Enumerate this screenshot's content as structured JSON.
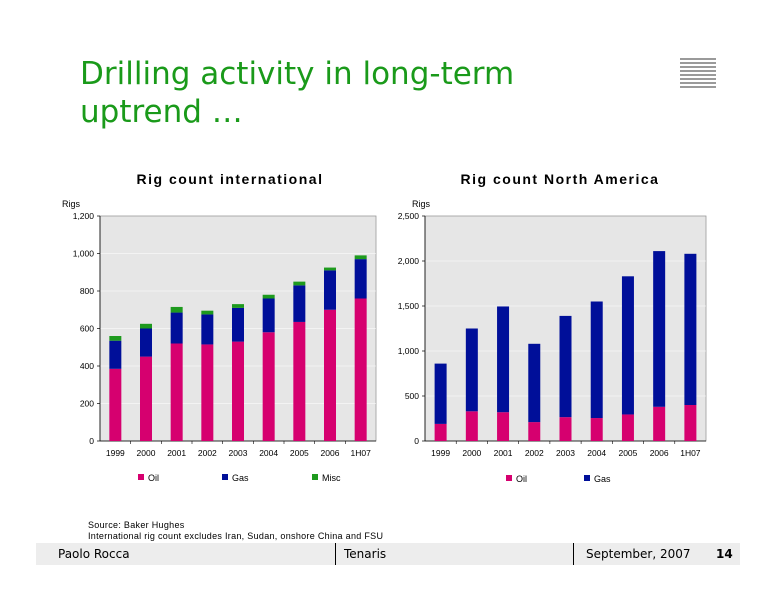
{
  "slide": {
    "title": "Drilling activity in long-term uptrend …",
    "source": "Source:   Baker Hughes",
    "note": "International rig count excludes Iran, Sudan, onshore China and FSU",
    "footer_left": "Paolo Rocca",
    "footer_mid": "Tenaris",
    "footer_date": "September, 2007",
    "page_number": "14"
  },
  "colors": {
    "oil": "#d6006f",
    "gas": "#000f99",
    "misc": "#1e9a1e",
    "plot_bg": "#e6e6e6",
    "title_green": "#1a9a1a"
  },
  "chart_data": [
    {
      "type": "bar",
      "stacked": true,
      "title": "Rig count international",
      "ylabel": "Rigs",
      "ylim": [
        0,
        1200
      ],
      "yticks": [
        0,
        200,
        400,
        600,
        800,
        1000,
        1200
      ],
      "ytick_labels": [
        "0",
        "200",
        "400",
        "600",
        "800",
        "1,000",
        "1,200"
      ],
      "categories": [
        "1999",
        "2000",
        "2001",
        "2002",
        "2003",
        "2004",
        "2005",
        "2006",
        "1H07"
      ],
      "series": [
        {
          "name": "Oil",
          "color": "#d6006f",
          "values": [
            385,
            450,
            520,
            515,
            530,
            580,
            635,
            700,
            760
          ]
        },
        {
          "name": "Gas",
          "color": "#000f99",
          "values": [
            150,
            150,
            165,
            160,
            180,
            180,
            195,
            210,
            210
          ]
        },
        {
          "name": "Misc",
          "color": "#1e9a1e",
          "values": [
            25,
            25,
            30,
            20,
            20,
            20,
            20,
            15,
            20
          ]
        }
      ],
      "legend": "bottom"
    },
    {
      "type": "bar",
      "stacked": true,
      "title": "Rig count North America",
      "ylabel": "Rigs",
      "ylim": [
        0,
        2500
      ],
      "yticks": [
        0,
        500,
        1000,
        1500,
        2000,
        2500
      ],
      "ytick_labels": [
        "0",
        "500",
        "1,000",
        "1,500",
        "2,000",
        "2,500"
      ],
      "categories": [
        "1999",
        "2000",
        "2001",
        "2002",
        "2003",
        "2004",
        "2005",
        "2006",
        "1H07"
      ],
      "series": [
        {
          "name": "Oil",
          "color": "#d6006f",
          "values": [
            190,
            330,
            320,
            210,
            265,
            255,
            295,
            380,
            400
          ]
        },
        {
          "name": "Gas",
          "color": "#000f99",
          "values": [
            670,
            920,
            1175,
            870,
            1125,
            1295,
            1535,
            1730,
            1680
          ]
        }
      ],
      "legend": "bottom"
    }
  ]
}
